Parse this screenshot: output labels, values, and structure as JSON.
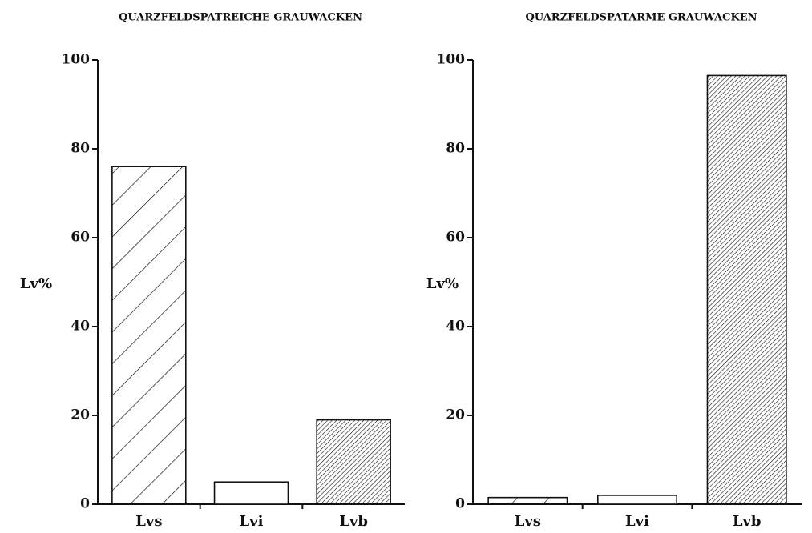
{
  "chart_data": [
    {
      "type": "bar",
      "title": "QUARZFELDSPATREICHE GRAUWACKEN",
      "ylabel": "Lv%",
      "categories": [
        "Lvs",
        "Lvi",
        "Lvb"
      ],
      "values": [
        76,
        5,
        19
      ],
      "patterns": [
        "hatch",
        "none",
        "dense-hatch"
      ],
      "ylim": [
        0,
        100
      ],
      "yticks": [
        0,
        20,
        40,
        60,
        80,
        100
      ]
    },
    {
      "type": "bar",
      "title": "QUARZFELDSPATARME GRAUWACKEN",
      "ylabel": "Lv%",
      "categories": [
        "Lvs",
        "Lvi",
        "Lvb"
      ],
      "values": [
        1.5,
        2,
        96.5
      ],
      "patterns": [
        "hatch",
        "none",
        "dense-hatch"
      ],
      "ylim": [
        0,
        100
      ],
      "yticks": [
        0,
        20,
        40,
        60,
        80,
        100
      ]
    }
  ]
}
